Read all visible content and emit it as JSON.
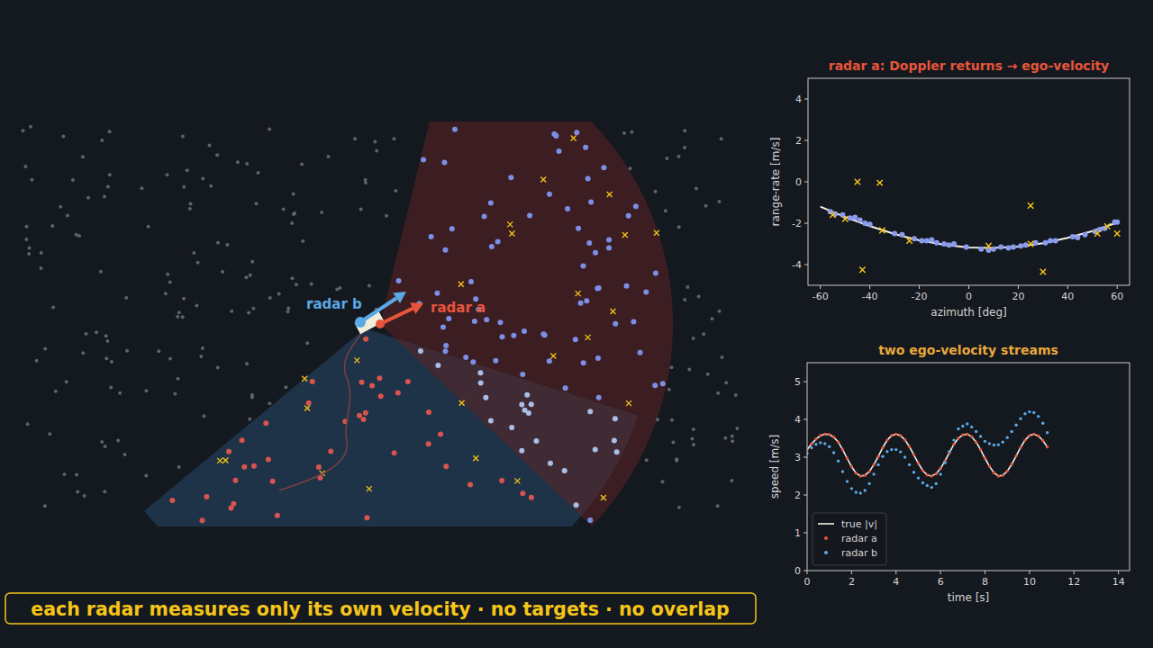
{
  "scene": {
    "labels": [
      {
        "text": "radar b",
        "color": "#5aa9e6"
      },
      {
        "text": "radar a",
        "color": "#e8553a"
      }
    ]
  },
  "caption": "each radar measures only its own velocity  ·  no targets  ·  no overlap",
  "chart_data": [
    {
      "type": "scatter",
      "title": "radar a: Doppler returns → ego-velocity",
      "x_label": "azimuth [deg]",
      "y_label": "range-rate [m/s]",
      "xlim": [
        -65,
        65
      ],
      "ylim": [
        -5,
        5
      ],
      "xticks": [
        -60,
        -40,
        -20,
        0,
        20,
        40,
        60
      ],
      "yticks": [
        -4,
        -2,
        0,
        2,
        4
      ],
      "grid": false,
      "series": [
        {
          "type": "line",
          "color": "#f2efe6",
          "x": [
            -60,
            -50,
            -40,
            -30,
            -20,
            -10,
            0,
            10,
            20,
            30,
            40,
            50,
            60
          ],
          "values": [
            -1.2,
            -1.7,
            -2.14,
            -2.52,
            -2.83,
            -3.04,
            -3.17,
            -3.2,
            -3.13,
            -2.97,
            -2.71,
            -2.38,
            -1.97
          ]
        },
        {
          "type": "scatter",
          "marker": "circle",
          "color": "#8a9cf0",
          "x": [
            -56,
            -54,
            -51,
            -48,
            -46,
            -44,
            -42,
            -40,
            -30,
            -27,
            -22,
            -19,
            -17,
            -15,
            -13,
            -10,
            -8,
            -6,
            -1,
            5,
            8,
            10,
            13,
            16,
            18,
            21,
            23,
            27,
            31,
            33,
            35,
            42,
            44,
            47,
            51,
            53,
            55,
            59,
            60
          ],
          "values": [
            -1.45,
            -1.55,
            -1.6,
            -1.75,
            -1.72,
            -1.85,
            -2.0,
            -2.05,
            -2.5,
            -2.55,
            -2.75,
            -2.85,
            -2.85,
            -2.8,
            -2.95,
            -3.0,
            -3.05,
            -3.0,
            -3.15,
            -3.25,
            -3.3,
            -3.25,
            -3.15,
            -3.2,
            -3.15,
            -3.1,
            -3.05,
            -2.95,
            -2.95,
            -2.85,
            -2.85,
            -2.65,
            -2.7,
            -2.55,
            -2.4,
            -2.3,
            -2.25,
            -1.95,
            -1.95
          ]
        },
        {
          "type": "scatter",
          "marker": "x",
          "color": "#f5c518",
          "x": [
            -55,
            -50,
            -45,
            -43,
            -36,
            -35,
            -24,
            8,
            25,
            25,
            30,
            52,
            56,
            60
          ],
          "values": [
            -1.6,
            -1.8,
            0,
            -4.25,
            -0.05,
            -2.35,
            -2.85,
            -3.1,
            -1.15,
            -3.0,
            -4.35,
            -2.5,
            -2.15,
            -2.5
          ]
        }
      ]
    },
    {
      "type": "scatter",
      "title": "two ego-velocity streams",
      "x_label": "time [s]",
      "y_label": "speed [m/s]",
      "xlim": [
        0,
        14.5
      ],
      "ylim": [
        0,
        5.5
      ],
      "xticks": [
        0,
        2,
        4,
        6,
        8,
        10,
        12,
        14
      ],
      "yticks": [
        0,
        1,
        2,
        3,
        4,
        5
      ],
      "grid": false,
      "legend": "lower left",
      "x": [
        0,
        0.2,
        0.4,
        0.6,
        0.8,
        1,
        1.2,
        1.4,
        1.6,
        1.8,
        2,
        2.2,
        2.4,
        2.6,
        2.8,
        3,
        3.2,
        3.4,
        3.6,
        3.8,
        4,
        4.2,
        4.4,
        4.6,
        4.8,
        5,
        5.2,
        5.4,
        5.6,
        5.8,
        6,
        6.2,
        6.4,
        6.6,
        6.8,
        7,
        7.2,
        7.4,
        7.6,
        7.8,
        8,
        8.2,
        8.4,
        8.6,
        8.8,
        9,
        9.2,
        9.4,
        9.6,
        9.8,
        10,
        10.2,
        10.4,
        10.6,
        10.8
      ],
      "series": [
        {
          "name": "true |v|",
          "type": "line",
          "color": "#f2efe6",
          "values": [
            3.2,
            3.35,
            3.48,
            3.57,
            3.61,
            3.6,
            3.53,
            3.4,
            3.2,
            2.97,
            2.75,
            2.58,
            2.5,
            2.52,
            2.62,
            2.8,
            3.02,
            3.25,
            3.45,
            3.57,
            3.61,
            3.57,
            3.46,
            3.28,
            3.06,
            2.84,
            2.65,
            2.53,
            2.5,
            2.56,
            2.7,
            2.9,
            3.12,
            3.34,
            3.5,
            3.59,
            3.61,
            3.54,
            3.4,
            3.2,
            2.97,
            2.76,
            2.59,
            2.5,
            2.52,
            2.63,
            2.81,
            3.03,
            3.26,
            3.45,
            3.57,
            3.61,
            3.56,
            3.44,
            3.27
          ]
        },
        {
          "name": "radar a",
          "type": "scatter",
          "marker": "circle",
          "color": "#e8553a",
          "values": [
            3.2,
            3.35,
            3.48,
            3.57,
            3.61,
            3.6,
            3.53,
            3.4,
            3.2,
            2.97,
            2.75,
            2.58,
            2.5,
            2.52,
            2.62,
            2.8,
            3.02,
            3.25,
            3.45,
            3.57,
            3.61,
            3.57,
            3.46,
            3.28,
            3.06,
            2.84,
            2.65,
            2.53,
            2.5,
            2.56,
            2.7,
            2.9,
            3.12,
            3.34,
            3.5,
            3.59,
            3.61,
            3.54,
            3.4,
            3.2,
            2.97,
            2.76,
            2.59,
            2.5,
            2.52,
            2.63,
            2.81,
            3.03,
            3.26,
            3.45,
            3.57,
            3.61,
            3.56,
            3.44,
            3.27
          ]
        },
        {
          "name": "radar b",
          "type": "scatter",
          "marker": "circle",
          "color": "#5aa9e6",
          "values": [
            3.1,
            3.25,
            3.34,
            3.38,
            3.36,
            3.28,
            3.12,
            2.9,
            2.62,
            2.36,
            2.17,
            2.07,
            2.05,
            2.12,
            2.3,
            2.55,
            2.8,
            3.02,
            3.15,
            3.2,
            3.2,
            3.14,
            3.0,
            2.8,
            2.6,
            2.45,
            2.32,
            2.25,
            2.2,
            2.3,
            2.55,
            2.85,
            3.15,
            3.45,
            3.75,
            3.82,
            3.88,
            3.8,
            3.68,
            3.55,
            3.42,
            3.36,
            3.32,
            3.33,
            3.4,
            3.52,
            3.68,
            3.85,
            4.02,
            4.15,
            4.2,
            4.18,
            4.08,
            3.9,
            3.65
          ]
        }
      ]
    }
  ]
}
